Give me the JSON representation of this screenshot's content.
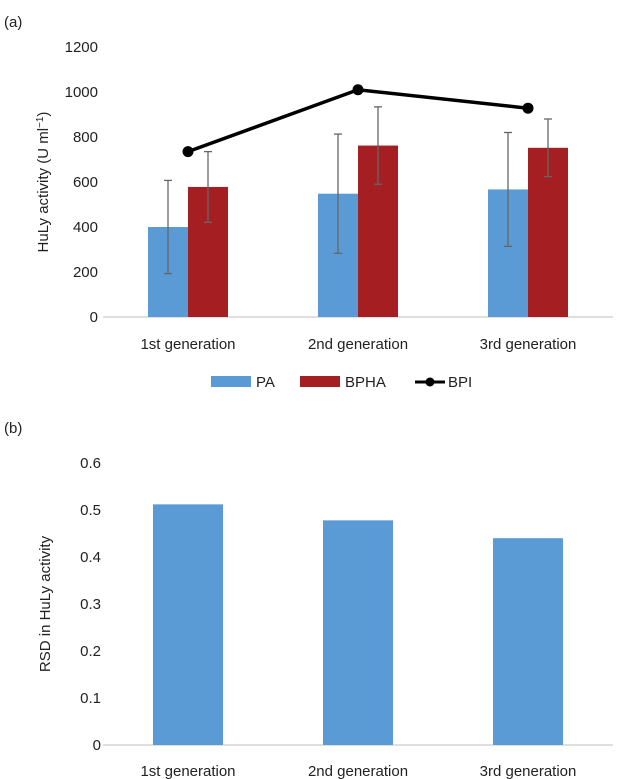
{
  "chart_data": [
    {
      "panel_label": "(a)",
      "type": "bar",
      "categories": [
        "1st generation",
        "2nd generation",
        "3rd generation"
      ],
      "ylabel_main": "HuLy activity (U ml",
      "ylabel_sup": "−1",
      "ylabel_end": ")",
      "ylim": [
        0,
        1200
      ],
      "yticks": [
        0,
        200,
        400,
        600,
        800,
        1000,
        1200
      ],
      "series": [
        {
          "name": "PA",
          "type": "bar",
          "color": "#5b9bd5",
          "values": [
            400,
            548,
            567
          ],
          "error": [
            207,
            265,
            253
          ]
        },
        {
          "name": "BPHA",
          "type": "bar",
          "color": "#a51e22",
          "values": [
            578,
            762,
            752
          ],
          "error": [
            157,
            172,
            128
          ]
        },
        {
          "name": "BPI",
          "type": "line",
          "color": "#000000",
          "values": [
            735,
            1010,
            928
          ]
        }
      ],
      "legend_position": "bottom"
    },
    {
      "panel_label": "(b)",
      "type": "bar",
      "categories": [
        "1st generation",
        "2nd generation",
        "3rd generation"
      ],
      "ylabel": "RSD in HuLy activity",
      "ylim": [
        0,
        0.6
      ],
      "yticks": [
        "0",
        "0.1",
        "0.2",
        "0.3",
        "0.4",
        "0.5",
        "0.6"
      ],
      "series": [
        {
          "type": "bar",
          "color": "#5b9bd5",
          "values": [
            0.512,
            0.478,
            0.44
          ]
        }
      ]
    }
  ]
}
